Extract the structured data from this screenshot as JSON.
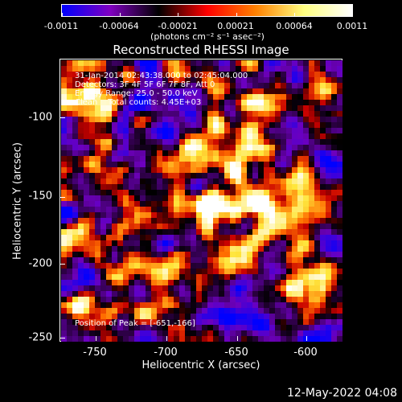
{
  "window": {
    "title": "Reconstructed RHESSI Image",
    "date_stamp": "12-May-2022 04:08"
  },
  "colorbar": {
    "tick_labels": [
      "-0.0011",
      "-0.00064",
      "-0.00021",
      "0.00021",
      "0.00064",
      "0.0011"
    ],
    "unit_label": "(photons cm⁻² s⁻¹ asec⁻²)",
    "colors": [
      "#0000ff",
      "#8000c0",
      "#000000",
      "#ff0000",
      "#ff8000",
      "#ffff80",
      "#ffffff"
    ]
  },
  "image": {
    "info_lines": [
      "31-Jan-2014 02:43:38.000 to 02:45:04.000",
      "Detectors: 3F 4F 5F 6F 7F 8F, Att 0",
      "Energy Range: 25.0 - 50.0 keV",
      "Clean    Total counts: 4.45E+03"
    ],
    "peak_text": "Position of Peak = [-651,-166]"
  },
  "axes": {
    "xlabel": "Heliocentric X (arcsec)",
    "ylabel": "Heliocentric Y (arcsec)",
    "x_ticks": [
      "-750",
      "-700",
      "-650",
      "-600"
    ],
    "y_ticks": [
      "-100",
      "-150",
      "-200",
      "-250"
    ]
  }
}
